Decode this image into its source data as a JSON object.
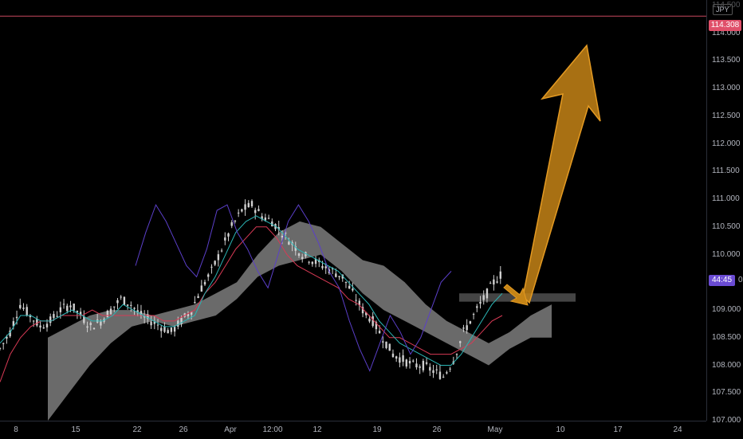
{
  "chart": {
    "currency": "JPY",
    "alert_price": "114.308",
    "countdown": "44:45",
    "countdown_tail": "0",
    "colors": {
      "background": "#000000",
      "candle": "#d0d0d0",
      "tenkan": "#2bb5b5",
      "kijun": "#d83a55",
      "chikou": "#5b3fc9",
      "cloud": "#8e8e8e",
      "alert_line": "#c7485e",
      "arrow_fill": "#c58416",
      "arrow_stroke": "#e49a22",
      "zone": "#555555"
    }
  },
  "price_axis": {
    "ticks": [
      "114.000",
      "113.500",
      "113.000",
      "112.500",
      "112.000",
      "111.500",
      "111.000",
      "110.500",
      "110.000",
      "109.000",
      "108.500",
      "108.000",
      "107.500",
      "107.000"
    ],
    "partial_top": "114.500"
  },
  "time_axis": {
    "ticks": [
      "8",
      "15",
      "22",
      "26",
      "Apr",
      "12:00",
      "12",
      "19",
      "26",
      "May",
      "10",
      "17",
      "24"
    ]
  },
  "chart_data": {
    "type": "candlestick",
    "y_range": [
      107.0,
      114.6
    ],
    "alert_level": 114.308,
    "zone_range": [
      109.15,
      109.3
    ],
    "series": [
      {
        "name": "price",
        "values": [
          108.3,
          108.6,
          109.1,
          108.9,
          108.7,
          108.8,
          109.0,
          109.1,
          108.9,
          108.7,
          108.8,
          109.0,
          109.2,
          109.1,
          108.9,
          108.8,
          108.7,
          108.6,
          108.8,
          109.0,
          109.4,
          109.7,
          110.1,
          110.5,
          110.8,
          110.9,
          110.7,
          110.6,
          110.4,
          110.2,
          110.0,
          109.9,
          109.8,
          109.7,
          109.6,
          109.3,
          109.0,
          108.8,
          108.5,
          108.2,
          108.1,
          108.0,
          108.0,
          107.9,
          107.8,
          108.1,
          108.6,
          108.9,
          109.2,
          109.5,
          109.7
        ]
      },
      {
        "name": "tenkan",
        "values": [
          108.4,
          108.6,
          108.9,
          108.9,
          108.8,
          108.8,
          108.9,
          109.0,
          108.9,
          108.8,
          108.8,
          108.9,
          109.1,
          109.0,
          108.9,
          108.8,
          108.7,
          108.7,
          108.8,
          108.9,
          109.3,
          109.6,
          110.0,
          110.4,
          110.6,
          110.7,
          110.6,
          110.5,
          110.3,
          110.1,
          110.0,
          109.9,
          109.8,
          109.7,
          109.5,
          109.3,
          109.1,
          108.8,
          108.6,
          108.4,
          108.3,
          108.2,
          108.1,
          108.0,
          108.0,
          108.2,
          108.5,
          108.8,
          109.1,
          109.3
        ]
      },
      {
        "name": "kijun",
        "values": [
          107.7,
          108.2,
          108.5,
          108.7,
          108.8,
          108.8,
          108.9,
          108.9,
          108.9,
          109.0,
          108.9,
          108.9,
          108.9,
          108.9,
          108.9,
          108.9,
          108.8,
          108.8,
          108.9,
          109.0,
          109.3,
          109.5,
          109.8,
          110.1,
          110.3,
          110.5,
          110.5,
          110.3,
          110.0,
          109.8,
          109.7,
          109.6,
          109.5,
          109.4,
          109.2,
          109.1,
          108.9,
          108.7,
          108.5,
          108.5,
          108.4,
          108.3,
          108.2,
          108.2,
          108.2,
          108.3,
          108.4,
          108.6,
          108.8,
          108.9
        ]
      },
      {
        "name": "chikou",
        "values": [
          109.8,
          110.4,
          110.9,
          110.6,
          110.2,
          109.8,
          109.6,
          110.1,
          110.8,
          110.9,
          110.4,
          110.1,
          109.7,
          109.4,
          110.0,
          110.6,
          110.9,
          110.6,
          110.2,
          109.7,
          109.4,
          108.8,
          108.3,
          107.9,
          108.4,
          108.9,
          108.6,
          108.2,
          108.5,
          109.0,
          109.5,
          109.7
        ]
      },
      {
        "name": "cloud_upper",
        "values": [
          108.5,
          108.7,
          108.9,
          109.0,
          109.0,
          108.9,
          109.0,
          109.1,
          109.3,
          109.5,
          110.0,
          110.4,
          110.6,
          110.5,
          110.2,
          109.9,
          109.8,
          109.5,
          109.1,
          108.8,
          108.6,
          108.4,
          108.6,
          108.9,
          109.1
        ]
      },
      {
        "name": "cloud_lower",
        "values": [
          107.0,
          107.5,
          108.0,
          108.4,
          108.7,
          108.8,
          108.7,
          108.8,
          108.9,
          109.2,
          109.6,
          109.8,
          109.9,
          110.0,
          109.7,
          109.3,
          109.0,
          108.8,
          108.6,
          108.4,
          108.2,
          108.0,
          108.3,
          108.5,
          108.5
        ]
      }
    ]
  }
}
